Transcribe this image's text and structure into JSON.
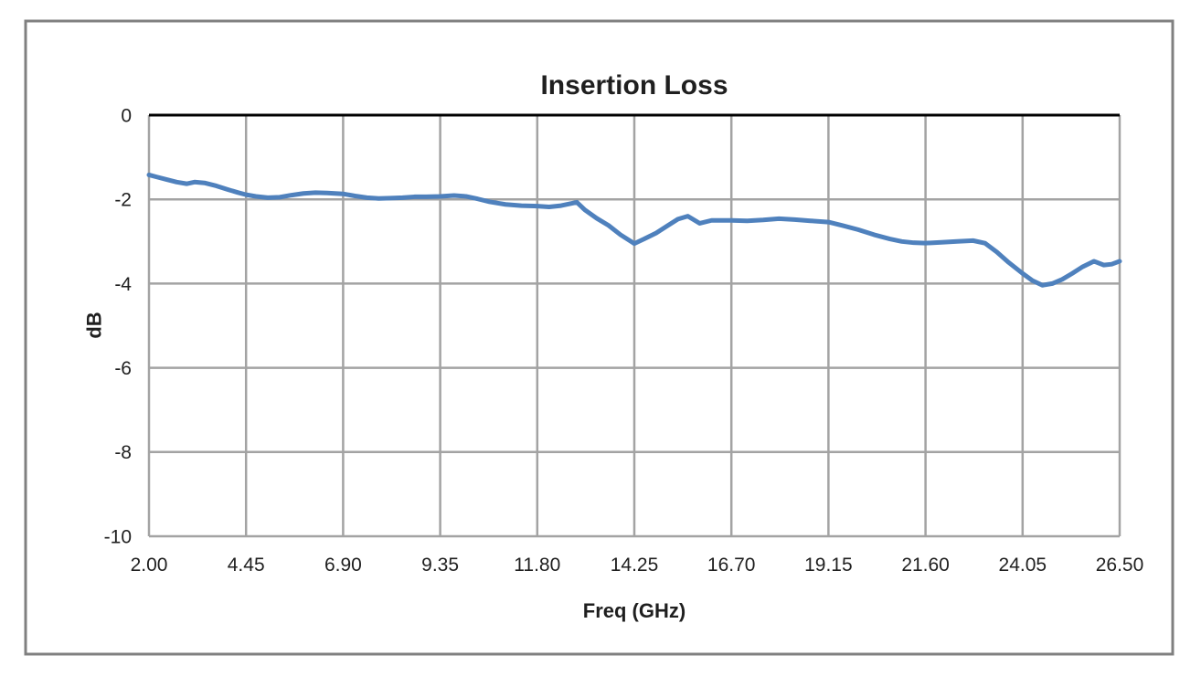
{
  "chart_data": {
    "type": "line",
    "title": "Insertion Loss",
    "xlabel": "Freq (GHz)",
    "ylabel": "dB",
    "xlim": [
      2.0,
      26.5
    ],
    "ylim": [
      -10,
      0
    ],
    "x_ticks": [
      "2.00",
      "4.45",
      "6.90",
      "9.35",
      "11.80",
      "14.25",
      "16.70",
      "19.15",
      "21.60",
      "24.05",
      "26.50"
    ],
    "y_ticks": [
      "0",
      "-2",
      "-4",
      "-6",
      "-8",
      "-10"
    ],
    "grid": true,
    "legend": "none",
    "series": [
      {
        "name": "Insertion Loss",
        "color": "#4F81BD",
        "x": [
          2.0,
          2.2,
          2.45,
          2.7,
          2.95,
          3.15,
          3.4,
          3.7,
          4.0,
          4.25,
          4.45,
          4.7,
          5.0,
          5.3,
          5.6,
          5.9,
          6.2,
          6.5,
          6.9,
          7.2,
          7.5,
          7.8,
          8.1,
          8.4,
          8.7,
          9.0,
          9.35,
          9.7,
          10.0,
          10.3,
          10.6,
          11.0,
          11.4,
          11.8,
          12.1,
          12.4,
          12.8,
          13.0,
          13.3,
          13.6,
          13.9,
          14.25,
          14.5,
          14.8,
          15.1,
          15.35,
          15.6,
          15.9,
          16.2,
          16.7,
          17.1,
          17.5,
          17.9,
          18.3,
          18.7,
          19.15,
          19.5,
          19.9,
          20.3,
          20.7,
          21.0,
          21.3,
          21.6,
          22.0,
          22.4,
          22.8,
          23.1,
          23.4,
          23.7,
          24.05,
          24.3,
          24.55,
          24.8,
          25.05,
          25.3,
          25.55,
          25.85,
          26.1,
          26.3,
          26.5
        ],
        "y": [
          -1.42,
          -1.47,
          -1.53,
          -1.59,
          -1.63,
          -1.59,
          -1.61,
          -1.68,
          -1.77,
          -1.84,
          -1.89,
          -1.93,
          -1.96,
          -1.95,
          -1.9,
          -1.86,
          -1.84,
          -1.85,
          -1.87,
          -1.92,
          -1.96,
          -1.98,
          -1.97,
          -1.96,
          -1.94,
          -1.94,
          -1.93,
          -1.91,
          -1.93,
          -1.99,
          -2.06,
          -2.12,
          -2.15,
          -2.16,
          -2.18,
          -2.15,
          -2.07,
          -2.25,
          -2.45,
          -2.62,
          -2.84,
          -3.05,
          -2.94,
          -2.8,
          -2.62,
          -2.47,
          -2.4,
          -2.57,
          -2.5,
          -2.5,
          -2.51,
          -2.49,
          -2.46,
          -2.48,
          -2.51,
          -2.54,
          -2.62,
          -2.72,
          -2.84,
          -2.94,
          -3.0,
          -3.03,
          -3.04,
          -3.02,
          -3.0,
          -2.98,
          -3.04,
          -3.25,
          -3.5,
          -3.76,
          -3.93,
          -4.04,
          -4.0,
          -3.9,
          -3.76,
          -3.61,
          -3.47,
          -3.56,
          -3.54,
          -3.47
        ]
      }
    ]
  },
  "colors": {
    "series_line": "#4F81BD",
    "gridline": "#A3A3A3",
    "zero_axis_line": "#000000",
    "chart_border": "#808080",
    "text": "#1f1f1f",
    "background": "#ffffff"
  }
}
